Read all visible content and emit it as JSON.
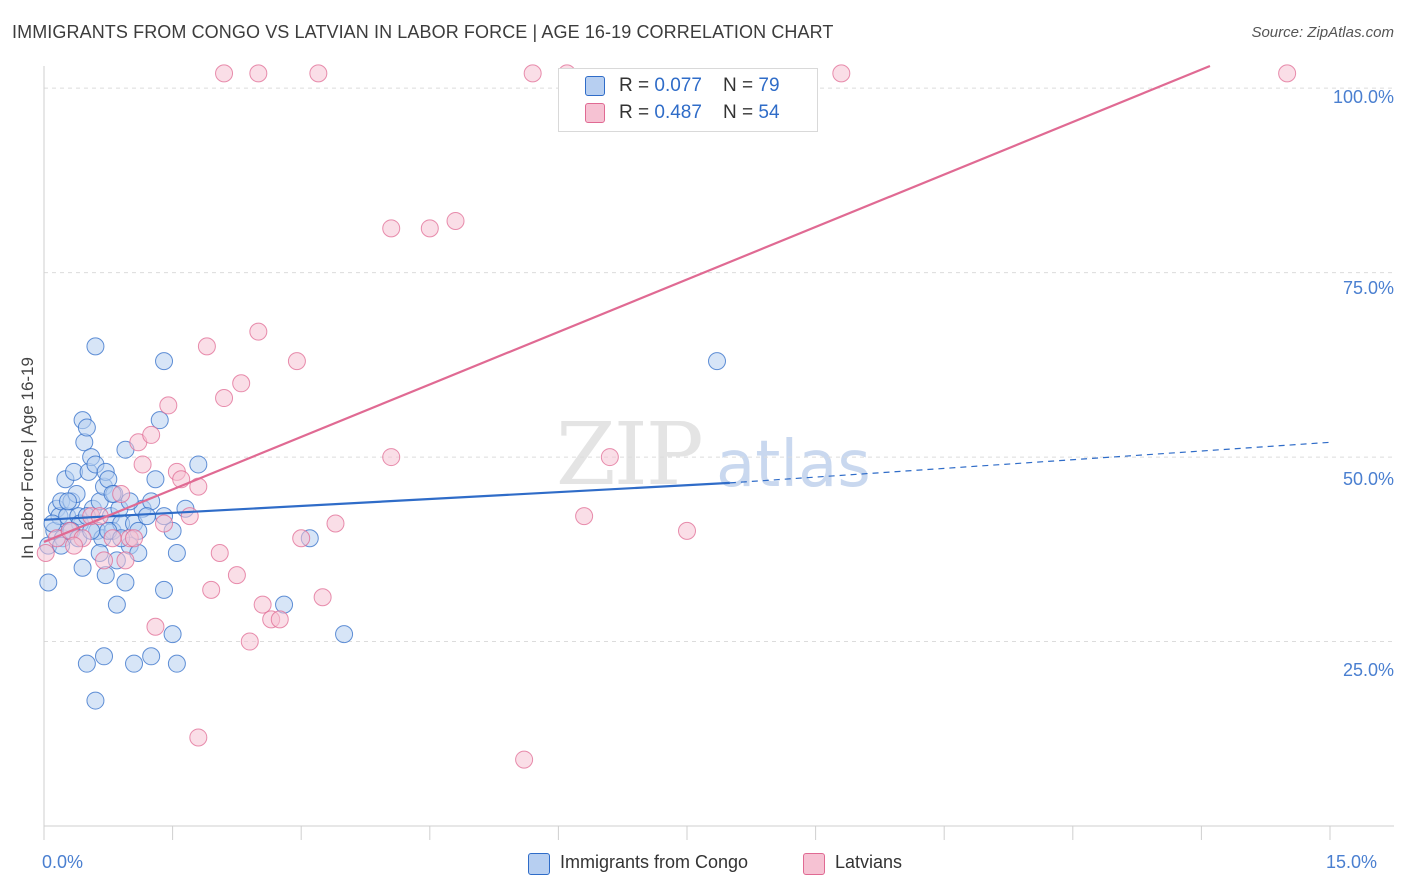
{
  "title": "IMMIGRANTS FROM CONGO VS LATVIAN IN LABOR FORCE | AGE 16-19 CORRELATION CHART",
  "source": "Source: ZipAtlas.com",
  "watermark_zip": "ZIP",
  "watermark_atlas": "atlas",
  "colors": {
    "blue": "#2f6cc8",
    "blue_fill": "#b7cff1",
    "pink": "#e06a93",
    "pink_fill": "#f6c2d3",
    "grid": "#dcdcdc"
  },
  "legend": {
    "rows": [
      {
        "r_label": "R = ",
        "r_value": "0.077",
        "n_label": "N = ",
        "n_value": "79"
      },
      {
        "r_label": "R = ",
        "r_value": "0.487",
        "n_label": "N = ",
        "n_value": "54"
      }
    ]
  },
  "chart_data": {
    "type": "scatter",
    "title": "IMMIGRANTS FROM CONGO VS LATVIAN IN LABOR FORCE | AGE 16-19 CORRELATION CHART",
    "xlabel": "",
    "ylabel": "In Labor Force | Age 16-19",
    "xlim": [
      0,
      15
    ],
    "ylim": [
      0,
      103
    ],
    "x_tick_labels": [
      "0.0%",
      "15.0%"
    ],
    "y_tick_values": [
      25,
      50,
      75,
      100
    ],
    "y_tick_labels": [
      "25.0%",
      "50.0%",
      "75.0%",
      "100.0%"
    ],
    "series": [
      {
        "name": "Immigrants from Congo",
        "R": 0.077,
        "N": 79,
        "trend": {
          "x0": 0,
          "y0": 41.5,
          "x1": 8.0,
          "y1": 46.5,
          "dash_to_x": 15,
          "dash_to_y": 52
        },
        "points": [
          [
            0.05,
            38
          ],
          [
            0.05,
            33
          ],
          [
            0.12,
            40
          ],
          [
            0.15,
            43
          ],
          [
            0.18,
            42
          ],
          [
            0.2,
            44
          ],
          [
            0.22,
            39
          ],
          [
            0.25,
            47
          ],
          [
            0.27,
            42
          ],
          [
            0.3,
            40
          ],
          [
            0.32,
            44
          ],
          [
            0.35,
            48
          ],
          [
            0.38,
            45
          ],
          [
            0.4,
            42
          ],
          [
            0.42,
            41
          ],
          [
            0.45,
            55
          ],
          [
            0.47,
            52
          ],
          [
            0.5,
            54
          ],
          [
            0.52,
            48
          ],
          [
            0.55,
            50
          ],
          [
            0.57,
            43
          ],
          [
            0.6,
            49
          ],
          [
            0.62,
            40
          ],
          [
            0.65,
            44
          ],
          [
            0.68,
            39
          ],
          [
            0.7,
            46
          ],
          [
            0.72,
            48
          ],
          [
            0.75,
            47
          ],
          [
            0.78,
            42
          ],
          [
            0.8,
            40
          ],
          [
            0.82,
            45
          ],
          [
            0.85,
            36
          ],
          [
            0.88,
            43
          ],
          [
            0.9,
            41
          ],
          [
            0.95,
            51
          ],
          [
            1.0,
            38
          ],
          [
            1.05,
            41
          ],
          [
            1.1,
            40
          ],
          [
            1.15,
            43
          ],
          [
            1.25,
            44
          ],
          [
            1.3,
            47
          ],
          [
            1.4,
            42
          ],
          [
            1.35,
            55
          ],
          [
            1.4,
            63
          ],
          [
            1.5,
            40
          ],
          [
            1.55,
            37
          ],
          [
            1.65,
            43
          ],
          [
            1.8,
            49
          ],
          [
            0.6,
            65
          ],
          [
            0.45,
            35
          ],
          [
            0.5,
            22
          ],
          [
            0.6,
            17
          ],
          [
            0.7,
            23
          ],
          [
            0.75,
            40
          ],
          [
            0.85,
            30
          ],
          [
            0.95,
            33
          ],
          [
            1.05,
            22
          ],
          [
            1.1,
            37
          ],
          [
            1.25,
            23
          ],
          [
            1.5,
            26
          ],
          [
            1.55,
            22
          ],
          [
            2.8,
            30
          ],
          [
            3.1,
            39
          ],
          [
            3.5,
            26
          ],
          [
            7.85,
            63
          ],
          [
            0.2,
            38
          ],
          [
            0.28,
            44
          ],
          [
            0.32,
            40
          ],
          [
            0.4,
            39
          ],
          [
            0.5,
            42
          ],
          [
            0.55,
            40
          ],
          [
            0.65,
            37
          ],
          [
            0.72,
            34
          ],
          [
            0.8,
            45
          ],
          [
            0.9,
            39
          ],
          [
            1.0,
            44
          ],
          [
            1.2,
            42
          ],
          [
            0.1,
            41
          ],
          [
            1.4,
            32
          ]
        ]
      },
      {
        "name": "Latvians",
        "R": 0.487,
        "N": 54,
        "trend": {
          "x0": 0,
          "y0": 38.5,
          "x1": 13.6,
          "y1": 103
        },
        "points": [
          [
            0.02,
            37
          ],
          [
            0.15,
            39
          ],
          [
            0.3,
            40
          ],
          [
            0.45,
            39
          ],
          [
            0.55,
            42
          ],
          [
            0.7,
            36
          ],
          [
            0.8,
            39
          ],
          [
            0.9,
            45
          ],
          [
            1.0,
            39
          ],
          [
            1.1,
            52
          ],
          [
            1.15,
            49
          ],
          [
            1.25,
            53
          ],
          [
            1.3,
            27
          ],
          [
            1.4,
            41
          ],
          [
            1.45,
            57
          ],
          [
            1.55,
            48
          ],
          [
            1.6,
            47
          ],
          [
            1.7,
            42
          ],
          [
            1.8,
            46
          ],
          [
            1.9,
            65
          ],
          [
            1.95,
            32
          ],
          [
            2.05,
            37
          ],
          [
            2.1,
            58
          ],
          [
            2.25,
            34
          ],
          [
            2.3,
            60
          ],
          [
            2.5,
            67
          ],
          [
            2.55,
            30
          ],
          [
            2.65,
            28
          ],
          [
            2.75,
            28
          ],
          [
            2.95,
            63
          ],
          [
            3.0,
            39
          ],
          [
            3.25,
            31
          ],
          [
            3.4,
            41
          ],
          [
            4.05,
            81
          ],
          [
            4.05,
            50
          ],
          [
            4.5,
            81
          ],
          [
            4.8,
            82
          ],
          [
            6.3,
            42
          ],
          [
            6.6,
            50
          ],
          [
            7.5,
            40
          ],
          [
            2.1,
            102
          ],
          [
            2.5,
            102
          ],
          [
            3.2,
            102
          ],
          [
            5.7,
            102
          ],
          [
            6.1,
            102
          ],
          [
            9.3,
            102
          ],
          [
            14.5,
            102
          ],
          [
            1.8,
            12
          ],
          [
            5.6,
            9
          ],
          [
            0.35,
            38
          ],
          [
            0.95,
            36
          ],
          [
            1.05,
            39
          ],
          [
            2.4,
            25
          ],
          [
            0.65,
            42
          ]
        ]
      }
    ]
  },
  "bottom_legend": [
    "Immigrants from Congo",
    "Latvians"
  ]
}
